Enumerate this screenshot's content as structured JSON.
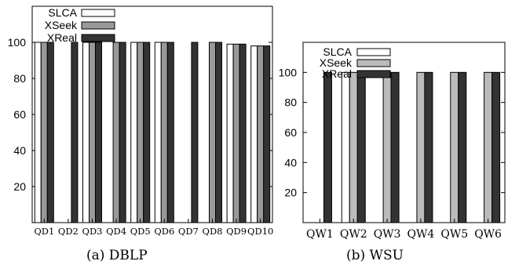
{
  "chart_data": [
    {
      "type": "bar",
      "categories": [
        "QD1",
        "QD2",
        "QD3",
        "QD4",
        "QD5",
        "QD6",
        "QD7",
        "QD8",
        "QD9",
        "QD10"
      ],
      "series": [
        {
          "name": "SLCA",
          "values": [
            100,
            0,
            100,
            0,
            100,
            100,
            0,
            0,
            99,
            98
          ],
          "color": "#ffffff"
        },
        {
          "name": "XSeek",
          "values": [
            100,
            0,
            100,
            100,
            100,
            100,
            0,
            100,
            99,
            98
          ],
          "color": "#999999"
        },
        {
          "name": "XReal",
          "values": [
            100,
            100,
            100,
            100,
            100,
            100,
            100,
            100,
            99,
            98
          ],
          "color": "#333333"
        }
      ],
      "yticks": [
        20,
        40,
        60,
        80,
        100
      ],
      "ylim": [
        0,
        120
      ],
      "legend_position": "top-left",
      "caption": "(a)  DBLP"
    },
    {
      "type": "bar",
      "categories": [
        "QW1",
        "QW2",
        "QW3",
        "QW4",
        "QW5",
        "QW6"
      ],
      "series": [
        {
          "name": "SLCA",
          "values": [
            0,
            100,
            0,
            0,
            0,
            0
          ],
          "color": "#ffffff"
        },
        {
          "name": "XSeek",
          "values": [
            0,
            100,
            100,
            100,
            100,
            100
          ],
          "color": "#bbbbbb"
        },
        {
          "name": "XReal",
          "values": [
            100,
            100,
            100,
            100,
            100,
            100
          ],
          "color": "#333333"
        }
      ],
      "yticks": [
        20,
        40,
        60,
        80,
        100
      ],
      "ylim": [
        0,
        120
      ],
      "legend_position": "top-left",
      "caption": "(b)  WSU"
    }
  ]
}
